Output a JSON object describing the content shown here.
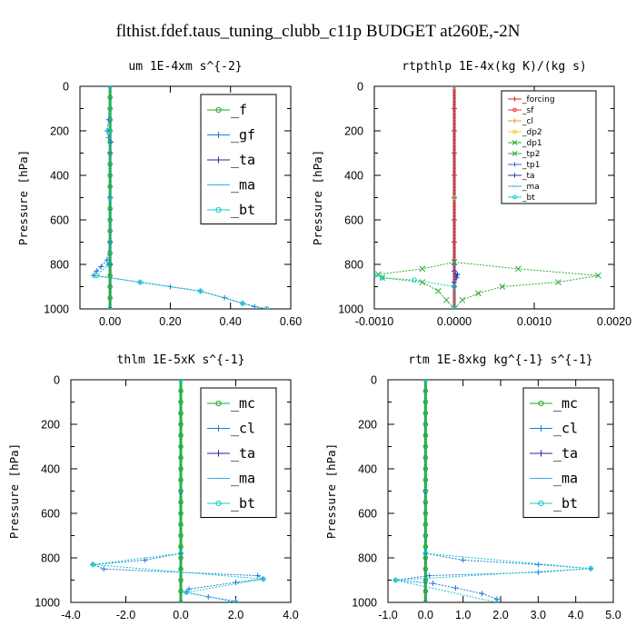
{
  "title": "flthist.fdef.taus_tuning_clubb_c11p  BUDGET at260E,-2N",
  "chart_data": [
    {
      "type": "line",
      "title": "um  1E-4xm s^{-2}",
      "ylabel": "Pressure [hPa]",
      "xlim": [
        -0.1,
        0.6
      ],
      "ylim": [
        1000,
        0
      ],
      "xticks": [
        "0.00",
        "0.20",
        "0.40",
        "0.60"
      ],
      "xtick_values": [
        0,
        0.2,
        0.4,
        0.6
      ],
      "yticks": [
        "0",
        "200",
        "400",
        "600",
        "800",
        "1000"
      ],
      "ytick_values": [
        0,
        200,
        400,
        600,
        800,
        1000
      ],
      "legend": {
        "position": "top-right",
        "size": "large"
      },
      "series": [
        {
          "name": "_f",
          "color": "#22aa22",
          "marker": "o",
          "points": [
            [
              0,
              0
            ],
            [
              0,
              50
            ],
            [
              0,
              100
            ],
            [
              0,
              150
            ],
            [
              0,
              200
            ],
            [
              0,
              250
            ],
            [
              0,
              300
            ],
            [
              0,
              350
            ],
            [
              0,
              400
            ],
            [
              0,
              450
            ],
            [
              0,
              500
            ],
            [
              0,
              550
            ],
            [
              0,
              600
            ],
            [
              0,
              650
            ],
            [
              0,
              700
            ],
            [
              0,
              750
            ],
            [
              0,
              800
            ],
            [
              0,
              850
            ],
            [
              0,
              900
            ],
            [
              0,
              950
            ],
            [
              0,
              1000
            ]
          ]
        },
        {
          "name": "_gf",
          "color": "#2277dd",
          "marker": "+",
          "points": [
            [
              0,
              0
            ],
            [
              -0.005,
              150
            ],
            [
              -0.01,
              200
            ],
            [
              -0.005,
              230
            ],
            [
              0.003,
              250
            ],
            [
              0,
              300
            ],
            [
              0,
              500
            ],
            [
              0,
              700
            ],
            [
              -0.01,
              780
            ],
            [
              -0.03,
              810
            ],
            [
              -0.045,
              830
            ],
            [
              -0.055,
              850
            ],
            [
              0.1,
              880
            ],
            [
              0.2,
              900
            ],
            [
              0.3,
              920
            ],
            [
              0.38,
              950
            ],
            [
              0.44,
              975
            ],
            [
              0.48,
              990
            ],
            [
              0.52,
              1000
            ]
          ]
        },
        {
          "name": "_ta",
          "color": "#2222aa",
          "marker": "+",
          "points": [
            [
              0,
              0
            ],
            [
              0,
              500
            ],
            [
              0,
              800
            ],
            [
              0,
              1000
            ]
          ]
        },
        {
          "name": "_ma",
          "color": "#44aaee",
          "marker": "-",
          "points": [
            [
              0,
              0
            ],
            [
              0,
              500
            ],
            [
              0,
              1000
            ]
          ]
        },
        {
          "name": "_bt",
          "color": "#11cccc",
          "marker": "o",
          "points": [
            [
              0,
              0
            ],
            [
              -0.003,
              200
            ],
            [
              0,
              500
            ],
            [
              -0.005,
              800
            ],
            [
              -0.045,
              850
            ],
            [
              0.1,
              880
            ],
            [
              0.3,
              920
            ],
            [
              0.44,
              975
            ],
            [
              0.52,
              1000
            ]
          ]
        }
      ]
    },
    {
      "type": "line",
      "title": "rtpthlp  1E-4x(kg K)/(kg s)",
      "ylabel": "Pressure [hPa]",
      "xlim": [
        -0.001,
        0.002
      ],
      "ylim": [
        1000,
        0
      ],
      "xticks": [
        "-0.0010",
        "0.0000",
        "0.0010",
        "0.0020"
      ],
      "xtick_values": [
        -0.001,
        0,
        0.001,
        0.002
      ],
      "yticks": [
        "0",
        "200",
        "400",
        "600",
        "800",
        "1000"
      ],
      "ytick_values": [
        0,
        200,
        400,
        600,
        800,
        1000
      ],
      "legend": {
        "position": "top-right",
        "size": "small"
      },
      "series": [
        {
          "name": "_forcing",
          "color": "#dd2222",
          "marker": "+",
          "points": [
            [
              0,
              0
            ],
            [
              0,
              100
            ],
            [
              0,
              200
            ],
            [
              0,
              300
            ],
            [
              0,
              400
            ],
            [
              0,
              500
            ],
            [
              0,
              600
            ],
            [
              0,
              700
            ],
            [
              0,
              800
            ],
            [
              0,
              900
            ],
            [
              0,
              1000
            ]
          ]
        },
        {
          "name": "_sf",
          "color": "#ee3333",
          "marker": "o",
          "points": [
            [
              0,
              0
            ],
            [
              0,
              500
            ],
            [
              0,
              1000
            ]
          ]
        },
        {
          "name": "_cl",
          "color": "#ee9922",
          "marker": "+",
          "points": [
            [
              0,
              0
            ],
            [
              0,
              500
            ],
            [
              0,
              1000
            ]
          ]
        },
        {
          "name": "_dp2",
          "color": "#eecc22",
          "marker": "o",
          "points": [
            [
              0,
              0
            ],
            [
              0,
              500
            ],
            [
              0,
              1000
            ]
          ]
        },
        {
          "name": "_dp1",
          "color": "#33aa33",
          "marker": "x",
          "points": [
            [
              0,
              790
            ],
            [
              -0.0004,
              820
            ],
            [
              -0.00095,
              845
            ],
            [
              -0.0009,
              860
            ],
            [
              -0.0004,
              880
            ],
            [
              -0.0002,
              920
            ],
            [
              -0.0001,
              960
            ],
            [
              0,
              1000
            ]
          ]
        },
        {
          "name": "_tp2",
          "color": "#33aa33",
          "marker": "x",
          "points": [
            [
              0,
              790
            ],
            [
              0.0008,
              820
            ],
            [
              0.0018,
              850
            ],
            [
              0.0013,
              880
            ],
            [
              0.0006,
              900
            ],
            [
              0.0003,
              930
            ],
            [
              0.0001,
              960
            ],
            [
              0,
              1000
            ]
          ]
        },
        {
          "name": "_tp1",
          "color": "#3366cc",
          "marker": "+",
          "points": [
            [
              0,
              800
            ],
            [
              2e-05,
              850
            ],
            [
              0,
              900
            ],
            [
              0,
              1000
            ]
          ]
        },
        {
          "name": "_ta",
          "color": "#3333aa",
          "marker": "+",
          "points": [
            [
              0,
              830
            ],
            [
              4e-05,
              845
            ],
            [
              3e-05,
              860
            ],
            [
              0,
              880
            ]
          ]
        },
        {
          "name": "_ma",
          "color": "#44aaee",
          "marker": "-",
          "points": [
            [
              0,
              0
            ],
            [
              0,
              500
            ],
            [
              0,
              1000
            ]
          ]
        },
        {
          "name": "_bt",
          "color": "#11cccc",
          "marker": "o",
          "points": [
            [
              -0.001,
              850
            ],
            [
              -0.0009,
              860
            ],
            [
              -0.0005,
              870
            ],
            [
              0,
              900
            ],
            [
              0,
              1000
            ]
          ]
        }
      ]
    },
    {
      "type": "line",
      "title": "thlm  1E-5xK s^{-1}",
      "ylabel": "Pressure [hPa]",
      "xlim": [
        -4.0,
        4.0
      ],
      "ylim": [
        1000,
        0
      ],
      "xticks": [
        "-4.0",
        "-2.0",
        "0.0",
        "2.0",
        "4.0"
      ],
      "xtick_values": [
        -4,
        -2,
        0,
        2,
        4
      ],
      "yticks": [
        "0",
        "200",
        "400",
        "600",
        "800",
        "1000"
      ],
      "ytick_values": [
        0,
        200,
        400,
        600,
        800,
        1000
      ],
      "legend": {
        "position": "top-right",
        "size": "large"
      },
      "series": [
        {
          "name": "_mc",
          "color": "#22aa22",
          "marker": "o",
          "points": [
            [
              0,
              0
            ],
            [
              0,
              50
            ],
            [
              0,
              100
            ],
            [
              0,
              150
            ],
            [
              0,
              200
            ],
            [
              0,
              250
            ],
            [
              0,
              300
            ],
            [
              0,
              350
            ],
            [
              0,
              400
            ],
            [
              0,
              450
            ],
            [
              0,
              500
            ],
            [
              0,
              550
            ],
            [
              0,
              600
            ],
            [
              0,
              650
            ],
            [
              0,
              700
            ],
            [
              0,
              750
            ],
            [
              0,
              800
            ],
            [
              0,
              850
            ],
            [
              0,
              900
            ],
            [
              0,
              950
            ],
            [
              0,
              1000
            ]
          ]
        },
        {
          "name": "_cl",
          "color": "#2277dd",
          "marker": "+",
          "points": [
            [
              0,
              0
            ],
            [
              0,
              500
            ],
            [
              0,
              780
            ],
            [
              -1.3,
              810
            ],
            [
              -3.2,
              830
            ],
            [
              -2.8,
              850
            ],
            [
              2.8,
              880
            ],
            [
              3.0,
              895
            ],
            [
              2.0,
              910
            ],
            [
              0.3,
              940
            ],
            [
              0.2,
              955
            ],
            [
              1.0,
              975
            ],
            [
              2.0,
              995
            ],
            [
              2.0,
              1000
            ]
          ]
        },
        {
          "name": "_ta",
          "color": "#2222aa",
          "marker": "+",
          "points": [
            [
              0,
              0
            ],
            [
              0,
              500
            ],
            [
              0,
              1000
            ]
          ]
        },
        {
          "name": "_ma",
          "color": "#44aaee",
          "marker": "-",
          "points": [
            [
              0,
              0
            ],
            [
              0,
              500
            ],
            [
              0,
              1000
            ]
          ]
        },
        {
          "name": "_bt",
          "color": "#11cccc",
          "marker": "o",
          "points": [
            [
              0,
              0
            ],
            [
              0,
              780
            ],
            [
              -3.2,
              830
            ],
            [
              3.0,
              895
            ],
            [
              0.2,
              955
            ],
            [
              2.0,
              1000
            ]
          ]
        }
      ]
    },
    {
      "type": "line",
      "title": "rtm  1E-8xkg kg^{-1} s^{-1}",
      "ylabel": "Pressure [hPa]",
      "xlim": [
        -1.0,
        5.0
      ],
      "ylim": [
        1000,
        0
      ],
      "xticks": [
        "-1.0",
        "0.0",
        "1.0",
        "2.0",
        "3.0",
        "4.0",
        "5.0"
      ],
      "xtick_values": [
        -1,
        0,
        1,
        2,
        3,
        4,
        5
      ],
      "yticks": [
        "0",
        "200",
        "400",
        "600",
        "800",
        "1000"
      ],
      "ytick_values": [
        0,
        200,
        400,
        600,
        800,
        1000
      ],
      "legend": {
        "position": "top-right",
        "size": "large"
      },
      "series": [
        {
          "name": "_mc",
          "color": "#22aa22",
          "marker": "o",
          "points": [
            [
              0,
              0
            ],
            [
              0,
              50
            ],
            [
              0,
              100
            ],
            [
              0,
              150
            ],
            [
              0,
              200
            ],
            [
              0,
              250
            ],
            [
              0,
              300
            ],
            [
              0,
              350
            ],
            [
              0,
              400
            ],
            [
              0,
              450
            ],
            [
              0,
              500
            ],
            [
              0,
              550
            ],
            [
              0,
              600
            ],
            [
              0,
              650
            ],
            [
              0,
              700
            ],
            [
              0,
              750
            ],
            [
              0,
              800
            ],
            [
              0,
              850
            ],
            [
              0,
              900
            ],
            [
              0,
              950
            ],
            [
              0,
              1000
            ]
          ]
        },
        {
          "name": "_cl",
          "color": "#2277dd",
          "marker": "+",
          "points": [
            [
              0,
              0
            ],
            [
              0,
              500
            ],
            [
              0,
              780
            ],
            [
              1.0,
              810
            ],
            [
              3.0,
              830
            ],
            [
              4.4,
              848
            ],
            [
              3.0,
              865
            ],
            [
              0.1,
              880
            ],
            [
              -0.8,
              900
            ],
            [
              0.2,
              915
            ],
            [
              0.8,
              935
            ],
            [
              1.5,
              960
            ],
            [
              1.9,
              985
            ],
            [
              1.9,
              1000
            ]
          ]
        },
        {
          "name": "_ta",
          "color": "#2222aa",
          "marker": "+",
          "points": [
            [
              0,
              0
            ],
            [
              0,
              500
            ],
            [
              0,
              1000
            ]
          ]
        },
        {
          "name": "_ma",
          "color": "#44aaee",
          "marker": "-",
          "points": [
            [
              0,
              0
            ],
            [
              0,
              500
            ],
            [
              0,
              1000
            ]
          ]
        },
        {
          "name": "_bt",
          "color": "#11cccc",
          "marker": "o",
          "points": [
            [
              0,
              0
            ],
            [
              0,
              780
            ],
            [
              4.4,
              848
            ],
            [
              -0.8,
              900
            ],
            [
              1.9,
              1000
            ]
          ]
        }
      ]
    }
  ]
}
